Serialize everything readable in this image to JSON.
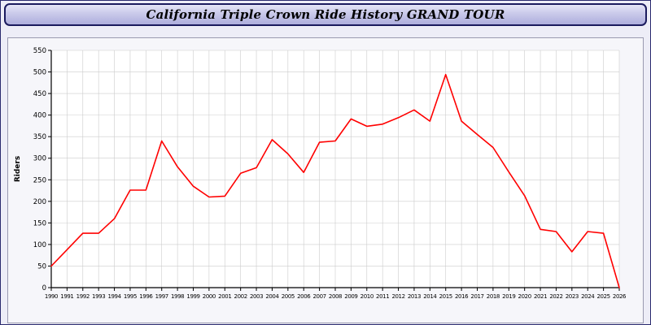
{
  "window": {
    "title": "California Triple Crown Ride History GRAND TOUR"
  },
  "colors": {
    "line": "#ff0000",
    "grid": "#cccccc",
    "axis": "#000000",
    "plot_background": "#ffffff",
    "panel_background": "#f6f6fa",
    "title_border": "#1b1b5e",
    "title_gradient_top": "#e4e4f6",
    "title_gradient_bottom": "#aeaedd"
  },
  "chart_data": {
    "type": "line",
    "title": "California Triple Crown Ride History GRAND TOUR",
    "xlabel": "",
    "ylabel": "Riders",
    "ylim": [
      0,
      550
    ],
    "ytick_step": 50,
    "grid": true,
    "legend_position": "none",
    "line_color": "#ff0000",
    "x": [
      1990,
      1991,
      1992,
      1993,
      1994,
      1995,
      1996,
      1997,
      1998,
      1999,
      2000,
      2001,
      2002,
      2003,
      2004,
      2005,
      2006,
      2007,
      2008,
      2009,
      2010,
      2011,
      2012,
      2013,
      2014,
      2015,
      2016,
      2017,
      2018,
      2019,
      2020,
      2021,
      2022,
      2023,
      2024,
      2025,
      2026
    ],
    "series": [
      {
        "name": "Riders",
        "values": [
          50,
          88,
          126,
          126,
          160,
          226,
          226,
          340,
          280,
          235,
          210,
          212,
          265,
          278,
          343,
          310,
          267,
          337,
          340,
          391,
          374,
          379,
          394,
          412,
          386,
          494,
          386,
          355,
          325,
          268,
          213,
          135,
          130,
          83,
          130,
          126,
          0
        ]
      }
    ]
  }
}
